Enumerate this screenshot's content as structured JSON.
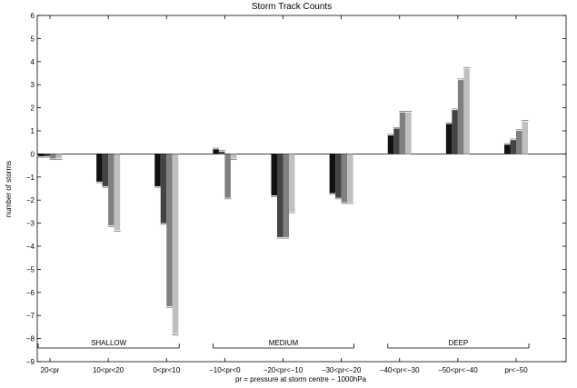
{
  "chart_data": {
    "type": "bar",
    "title": "Storm Track Counts",
    "xlabel": "pr = pressure at storm centre − 1000hPa",
    "ylabel": "number of storms",
    "ylim": [
      -9,
      6
    ],
    "yticks": [
      6,
      5,
      4,
      3,
      2,
      1,
      0,
      -1,
      -2,
      -3,
      -4,
      -5,
      -6,
      -7,
      -8,
      -9
    ],
    "categories": [
      "20<pr",
      "10<pr<20",
      "0<pr<10",
      "−10<pr<0",
      "−20<pr<−10",
      "−30<pr<−20",
      "−40<pr<−30",
      "−50<pr<−40",
      "pr<−50"
    ],
    "series": [
      {
        "color": "#111111",
        "values": [
          -0.1,
          -1.2,
          -1.4,
          0.2,
          -1.8,
          -1.7,
          0.8,
          1.3,
          0.4
        ]
      },
      {
        "color": "#444444",
        "values": [
          -0.1,
          -1.4,
          -3.0,
          0.1,
          -3.6,
          -1.9,
          1.1,
          1.9,
          0.6
        ]
      },
      {
        "color": "#808080",
        "values": [
          -0.2,
          -3.1,
          -6.6,
          -1.9,
          -3.6,
          -2.1,
          1.8,
          3.2,
          1.0
        ]
      },
      {
        "color": "#c0c0c0",
        "values": [
          -0.2,
          -3.3,
          -7.8,
          -0.2,
          -2.5,
          -2.1,
          1.8,
          3.7,
          1.4
        ]
      }
    ],
    "groups": [
      {
        "label": "SHALLOW",
        "categories": [
          0,
          2
        ]
      },
      {
        "label": "MEDIUM",
        "categories": [
          3,
          5
        ]
      },
      {
        "label": "DEEP",
        "categories": [
          6,
          8
        ]
      }
    ],
    "grid": false,
    "legend": "none"
  }
}
